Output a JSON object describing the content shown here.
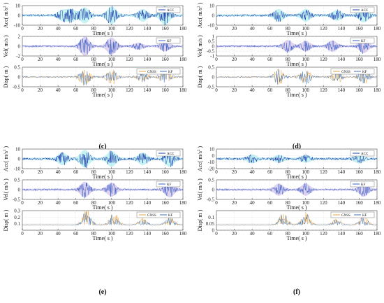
{
  "colors": {
    "acc": "#1f3fb0",
    "acc_band": "#7fe3e3",
    "vel": "#3a5fc8",
    "vel_band": "#b39ddb",
    "gnss": "#e6a23c",
    "kf": "#3b6fb6",
    "disp_band": "#d7a96b",
    "grid": "#c9c9c9"
  },
  "chart_data": [
    {
      "panel": "c",
      "caption": "(c)",
      "type": "line",
      "title": "",
      "subplots": [
        {
          "kind": "acc",
          "xlabel": "Time( s )",
          "ylabel": "Acc( m/s^2 )",
          "xlim": [
            0,
            180
          ],
          "ylim": [
            -10,
            10
          ],
          "xticks": [
            "0",
            "20",
            "40",
            "60",
            "80",
            "100",
            "120",
            "140",
            "160",
            "180"
          ],
          "yticks": [
            "10",
            "0",
            "-10"
          ],
          "series": [
            {
              "name": "ACC",
              "bursts": [
                [
                  45,
                  5
                ],
                [
                  55,
                  6
                ],
                [
                  70,
                  8
                ],
                [
                  100,
                  9
                ],
                [
                  135,
                  6
                ],
                [
                  160,
                  10
                ]
              ]
            }
          ]
        },
        {
          "kind": "vel",
          "xlabel": "Time( s )",
          "ylabel": "Vel( m/s )",
          "xlim": [
            0,
            180
          ],
          "ylim": [
            -2,
            2
          ],
          "xticks": [
            "0",
            "20",
            "40",
            "60",
            "80",
            "100",
            "120",
            "140",
            "160",
            "180"
          ],
          "yticks": [
            "2",
            "0",
            "-2"
          ],
          "series": [
            {
              "name": "KF",
              "bursts": [
                [
                  70,
                  2.0
                ],
                [
                  100,
                  1.8
                ],
                [
                  130,
                  0.6
                ],
                [
                  160,
                  1.0
                ]
              ]
            }
          ]
        },
        {
          "kind": "disp",
          "xlabel": "Time( s )",
          "ylabel": "Disp( m )",
          "xlim": [
            0,
            180
          ],
          "ylim": [
            -0.5,
            0.5
          ],
          "xticks": [
            "0",
            "20",
            "40",
            "60",
            "80",
            "100",
            "120",
            "140",
            "160",
            "180"
          ],
          "yticks": [
            "0.5",
            "0",
            "-0.5"
          ],
          "series": [
            {
              "name": "GNSS",
              "bursts": [
                [
                  70,
                  0.45
                ],
                [
                  100,
                  0.4
                ],
                [
                  135,
                  0.25
                ],
                [
                  160,
                  0.35
                ]
              ]
            },
            {
              "name": "KF",
              "bursts": [
                [
                  70,
                  0.4
                ],
                [
                  100,
                  0.38
                ],
                [
                  135,
                  0.22
                ],
                [
                  160,
                  0.32
                ]
              ]
            }
          ]
        }
      ]
    },
    {
      "panel": "d",
      "caption": "(d)",
      "type": "line",
      "title": "",
      "subplots": [
        {
          "kind": "acc",
          "xlabel": "Time( s )",
          "ylabel": "Acc( m/s^2 )",
          "xlim": [
            0,
            180
          ],
          "ylim": [
            -10,
            10
          ],
          "xticks": [
            "0",
            "20",
            "40",
            "60",
            "80",
            "100",
            "120",
            "140",
            "160",
            "180"
          ],
          "yticks": [
            "10",
            "0",
            "-10"
          ],
          "series": [
            {
              "name": "ACC",
              "bursts": [
                [
                  70,
                  6
                ],
                [
                  100,
                  6
                ],
                [
                  135,
                  5
                ],
                [
                  165,
                  7
                ]
              ]
            }
          ]
        },
        {
          "kind": "vel",
          "xlabel": "Time( s )",
          "ylabel": "Vel( m/s )",
          "xlim": [
            0,
            180
          ],
          "ylim": [
            -1,
            1
          ],
          "xticks": [
            "0",
            "20",
            "40",
            "60",
            "80",
            "100",
            "120",
            "140",
            "160",
            "180"
          ],
          "yticks": [
            "1",
            "0.5",
            "0",
            "-0.5",
            "-1"
          ],
          "series": [
            {
              "name": "KF",
              "bursts": [
                [
                  80,
                  0.6
                ],
                [
                  100,
                  0.5
                ],
                [
                  130,
                  0.55
                ],
                [
                  165,
                  0.7
                ]
              ]
            }
          ]
        },
        {
          "kind": "disp",
          "xlabel": "Time( s )",
          "ylabel": "Disp( m )",
          "xlim": [
            0,
            180
          ],
          "ylim": [
            -0.5,
            0.5
          ],
          "xticks": [
            "0",
            "20",
            "40",
            "60",
            "80",
            "100",
            "120",
            "140",
            "160",
            "180"
          ],
          "yticks": [
            "0.5",
            "0",
            "-0.5"
          ],
          "series": [
            {
              "name": "GNSS",
              "bursts": [
                [
                  70,
                  0.4
                ],
                [
                  100,
                  0.4
                ],
                [
                  135,
                  0.3
                ],
                [
                  165,
                  0.35
                ]
              ]
            },
            {
              "name": "KF",
              "bursts": [
                [
                  70,
                  0.36
                ],
                [
                  100,
                  0.36
                ],
                [
                  135,
                  0.26
                ],
                [
                  165,
                  0.32
                ]
              ]
            }
          ]
        }
      ]
    },
    {
      "panel": "e",
      "caption": "(e)",
      "type": "line",
      "title": "",
      "subplots": [
        {
          "kind": "acc",
          "xlabel": "Time( s )",
          "ylabel": "Acc( m/s^2 )",
          "xlim": [
            0,
            180
          ],
          "ylim": [
            -10,
            10
          ],
          "xticks": [
            "0",
            "20",
            "40",
            "60",
            "80",
            "100",
            "120",
            "140",
            "160",
            "180"
          ],
          "yticks": [
            "10",
            "0",
            "-10"
          ],
          "series": [
            {
              "name": "ACC",
              "bursts": [
                [
                  45,
                  6
                ],
                [
                  70,
                  9
                ],
                [
                  100,
                  8
                ],
                [
                  135,
                  6
                ],
                [
                  165,
                  8
                ]
              ]
            }
          ]
        },
        {
          "kind": "vel",
          "xlabel": "Time( s )",
          "ylabel": "Vel( m/s )",
          "xlim": [
            0,
            180
          ],
          "ylim": [
            -0.5,
            0.5
          ],
          "xticks": [
            "0",
            "20",
            "40",
            "60",
            "80",
            "100",
            "120",
            "140",
            "160",
            "180"
          ],
          "yticks": [
            "0.5",
            "0",
            "-0.5"
          ],
          "series": [
            {
              "name": "KF",
              "bursts": [
                [
                  70,
                  0.4
                ],
                [
                  100,
                  0.35
                ],
                [
                  165,
                  0.4
                ]
              ]
            }
          ]
        },
        {
          "kind": "disp",
          "xlabel": "Time( s )",
          "ylabel": "Disp( m )",
          "xlim": [
            0,
            180
          ],
          "ylim": [
            0,
            0.3
          ],
          "xticks": [
            "0",
            "20",
            "40",
            "60",
            "80",
            "100",
            "120",
            "140",
            "160",
            "180"
          ],
          "yticks": [
            "0.3",
            "0.2",
            "0.1"
          ],
          "series": [
            {
              "name": "GNSS",
              "bursts": [
                [
                  72,
                  0.25
                ],
                [
                  103,
                  0.22
                ],
                [
                  135,
                  0.1
                ],
                [
                  165,
                  0.14
                ]
              ]
            },
            {
              "name": "KF",
              "bursts": [
                [
                  72,
                  0.23
                ],
                [
                  103,
                  0.2
                ],
                [
                  135,
                  0.09
                ],
                [
                  165,
                  0.13
                ]
              ]
            }
          ]
        }
      ]
    },
    {
      "panel": "f",
      "caption": "(f)",
      "type": "line",
      "title": "",
      "subplots": [
        {
          "kind": "acc",
          "xlabel": "Time( s )",
          "ylabel": "Acc( m/s^2 )",
          "xlim": [
            0,
            180
          ],
          "ylim": [
            -20,
            10
          ],
          "xticks": [
            "0",
            "20",
            "40",
            "60",
            "80",
            "100",
            "120",
            "140",
            "160",
            "180"
          ],
          "yticks": [
            "10",
            "0",
            "-10",
            "-20"
          ],
          "series": [
            {
              "name": "ACC",
              "bursts": [
                [
                  40,
                  6
                ],
                [
                  70,
                  5
                ],
                [
                  100,
                  5
                ],
                [
                  160,
                  6
                ]
              ]
            }
          ]
        },
        {
          "kind": "vel",
          "xlabel": "Time( s )",
          "ylabel": "Vel( m/s )",
          "xlim": [
            0,
            180
          ],
          "ylim": [
            -0.5,
            0.5
          ],
          "xticks": [
            "0",
            "20",
            "40",
            "60",
            "80",
            "100",
            "120",
            "140",
            "160",
            "180"
          ],
          "yticks": [
            "0.5",
            "0",
            "-0.5"
          ],
          "series": [
            {
              "name": "KF",
              "bursts": [
                [
                  70,
                  0.3
                ],
                [
                  100,
                  0.3
                ],
                [
                  165,
                  0.35
                ]
              ]
            }
          ]
        },
        {
          "kind": "disp",
          "xlabel": "Time( s )",
          "ylabel": "Disp( m )",
          "xlim": [
            0,
            180
          ],
          "ylim": [
            0,
            0.15
          ],
          "xticks": [
            "0",
            "20",
            "40",
            "60",
            "80",
            "100",
            "120",
            "140",
            "160",
            "180"
          ],
          "yticks": [
            "0.1",
            "0.05",
            "0"
          ],
          "series": [
            {
              "name": "GNSS",
              "bursts": [
                [
                  75,
                  0.1
                ],
                [
                  100,
                  0.1
                ],
                [
                  135,
                  0.05
                ],
                [
                  165,
                  0.07
                ]
              ]
            },
            {
              "name": "KF",
              "bursts": [
                [
                  75,
                  0.09
                ],
                [
                  100,
                  0.09
                ],
                [
                  135,
                  0.045
                ],
                [
                  165,
                  0.065
                ]
              ]
            }
          ]
        }
      ]
    }
  ]
}
